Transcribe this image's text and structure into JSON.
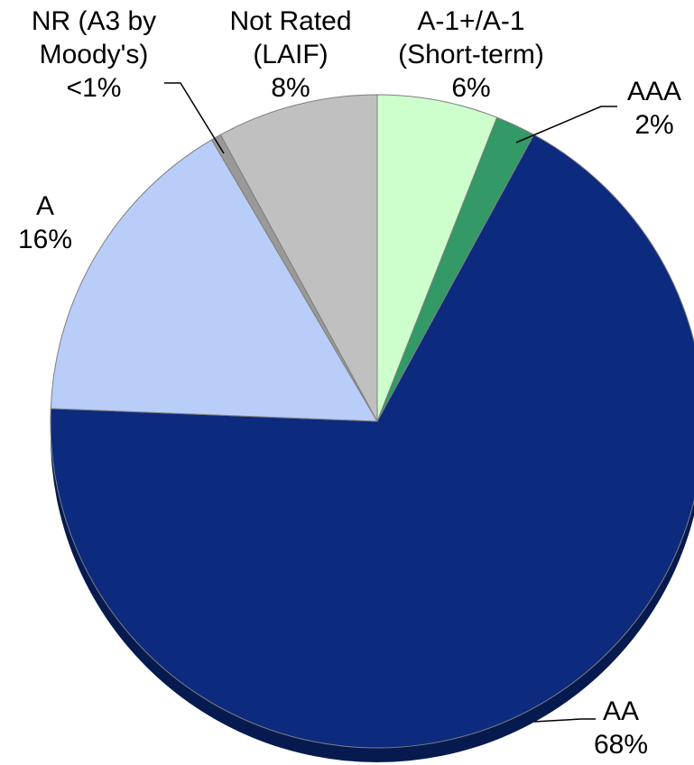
{
  "chart_data": {
    "type": "pie",
    "categories": [
      "A-1+/A-1\n(Short-term)",
      "AAA",
      "AA",
      "A",
      "NR (A3 by\nMoody's)",
      "Not Rated\n(LAIF)"
    ],
    "values": [
      6,
      2,
      68,
      16,
      0.5,
      8
    ],
    "value_labels": [
      "6%",
      "2%",
      "68%",
      "16%",
      "<1%",
      "8%"
    ],
    "colors": [
      "#ccffcc",
      "#339966",
      "#0c2a7e",
      "#b9cdf9",
      "#999999",
      "#c0c0c0"
    ]
  }
}
